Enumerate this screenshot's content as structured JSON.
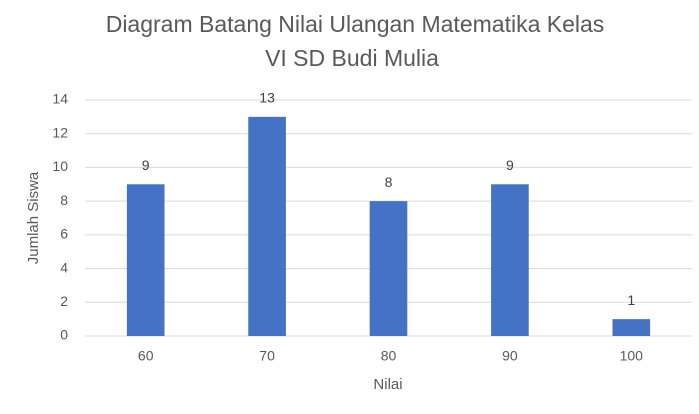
{
  "chart_data": {
    "type": "bar",
    "title": [
      "Diagram Batang Nilai Ulangan Matematika Kelas",
      "VI SD Budi Mulia"
    ],
    "x_label": "Nilai",
    "y_label": "Jumlah Siswa",
    "categories": [
      "60",
      "70",
      "80",
      "90",
      "100"
    ],
    "values": [
      9,
      13,
      8,
      9,
      1
    ],
    "color": "#4472c4",
    "ylim": [
      0,
      14
    ],
    "yticks": [
      0,
      2,
      4,
      6,
      8,
      10,
      12,
      14
    ],
    "grid": true,
    "data_labels": true
  }
}
